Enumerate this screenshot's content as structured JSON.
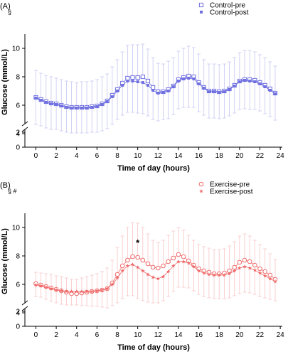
{
  "chart_data": [
    {
      "type": "line",
      "panel_label": "(A)",
      "annotation": "§",
      "xlabel": "Time of day (hours)",
      "ylabel": "Glucose (mmol/L)",
      "xlim": [
        -0.8,
        24.2
      ],
      "ylim_lower": [
        0,
        2
      ],
      "ylim_upper": [
        3,
        11
      ],
      "xticks": [
        "0",
        "2",
        "4",
        "6",
        "8",
        "10",
        "12",
        "14",
        "16",
        "18",
        "20",
        "22",
        "24"
      ],
      "yticks_lower": [
        "0",
        "2"
      ],
      "yticks_upper": [
        "4",
        "6",
        "8",
        "10"
      ],
      "axis_break": true,
      "legend_position": "top-right",
      "color": "#7070e0",
      "x": [
        0,
        0.5,
        1,
        1.5,
        2,
        2.5,
        3,
        3.5,
        4,
        4.5,
        5,
        5.5,
        6,
        6.5,
        7,
        7.5,
        8,
        8.5,
        9,
        9.5,
        10,
        10.5,
        11,
        11.5,
        12,
        12.5,
        13,
        13.5,
        14,
        14.5,
        15,
        15.5,
        16,
        16.5,
        17,
        17.5,
        18,
        18.5,
        19,
        19.5,
        20,
        20.5,
        21,
        21.5,
        22,
        22.5,
        23,
        23.5
      ],
      "series": [
        {
          "name": "Control-pre",
          "marker": "open-square",
          "values": [
            6.55,
            6.4,
            6.25,
            6.15,
            6.1,
            6.0,
            5.9,
            5.85,
            5.85,
            5.85,
            5.85,
            5.9,
            5.95,
            6.1,
            6.3,
            6.7,
            7.1,
            7.55,
            7.9,
            7.95,
            7.95,
            8.0,
            7.7,
            7.25,
            6.95,
            6.95,
            7.1,
            7.35,
            7.8,
            7.95,
            8.05,
            8.0,
            7.6,
            7.25,
            7.0,
            7.0,
            6.95,
            7.0,
            7.15,
            7.4,
            7.7,
            7.8,
            7.8,
            7.75,
            7.6,
            7.4,
            7.15,
            6.85
          ],
          "errors": [
            1.9,
            1.85,
            1.85,
            1.85,
            1.8,
            1.8,
            1.8,
            1.8,
            1.75,
            1.8,
            1.8,
            1.8,
            1.85,
            1.9,
            1.9,
            2.0,
            2.1,
            2.2,
            2.3,
            2.3,
            2.3,
            2.3,
            2.25,
            2.1,
            2.0,
            1.95,
            2.0,
            2.0,
            2.0,
            2.05,
            2.1,
            2.05,
            2.0,
            1.95,
            1.9,
            1.9,
            1.9,
            1.9,
            1.9,
            1.95,
            2.0,
            2.05,
            2.05,
            2.0,
            1.95,
            1.95,
            1.9,
            1.9
          ]
        },
        {
          "name": "Control-post",
          "marker": "filled-square",
          "values": [
            6.5,
            6.35,
            6.2,
            6.1,
            6.05,
            5.95,
            5.85,
            5.8,
            5.8,
            5.8,
            5.8,
            5.85,
            5.9,
            6.05,
            6.25,
            6.6,
            7.0,
            7.4,
            7.7,
            7.7,
            7.65,
            7.6,
            7.4,
            7.05,
            6.85,
            6.9,
            7.0,
            7.3,
            7.7,
            7.85,
            7.9,
            7.85,
            7.5,
            7.2,
            6.95,
            6.95,
            6.9,
            6.95,
            7.1,
            7.35,
            7.65,
            7.75,
            7.7,
            7.65,
            7.5,
            7.3,
            7.05,
            6.8
          ],
          "errors": [
            1.85,
            1.8,
            1.8,
            1.8,
            1.75,
            1.75,
            1.75,
            1.75,
            1.75,
            1.75,
            1.75,
            1.75,
            1.8,
            1.85,
            1.9,
            1.95,
            2.0,
            2.1,
            2.2,
            2.2,
            2.2,
            2.2,
            2.15,
            2.05,
            1.95,
            1.9,
            1.95,
            1.95,
            1.95,
            2.0,
            2.05,
            2.0,
            1.95,
            1.9,
            1.85,
            1.85,
            1.85,
            1.85,
            1.85,
            1.9,
            1.95,
            2.0,
            2.0,
            1.95,
            1.9,
            1.9,
            1.85,
            1.85
          ]
        }
      ]
    },
    {
      "type": "line",
      "panel_label": "(B)",
      "annotation": "§ #",
      "asterisk": "*",
      "asterisk_x": 10,
      "xlabel": "Time of day (hours)",
      "ylabel": "Glucose (mmol/L)",
      "xlim": [
        -0.8,
        24.2
      ],
      "ylim_lower": [
        0,
        2
      ],
      "ylim_upper": [
        3,
        11
      ],
      "xticks": [
        "0",
        "2",
        "4",
        "6",
        "8",
        "10",
        "12",
        "14",
        "16",
        "18",
        "20",
        "22",
        "24"
      ],
      "yticks_lower": [
        "0",
        "2"
      ],
      "yticks_upper": [
        "4",
        "6",
        "8",
        "10"
      ],
      "axis_break": true,
      "legend_position": "top-right",
      "color": "#ef6b6b",
      "x": [
        0,
        0.5,
        1,
        1.5,
        2,
        2.5,
        3,
        3.5,
        4,
        4.5,
        5,
        5.5,
        6,
        6.5,
        7,
        7.5,
        8,
        8.5,
        9,
        9.5,
        10,
        10.5,
        11,
        11.5,
        12,
        12.5,
        13,
        13.5,
        14,
        14.5,
        15,
        15.5,
        16,
        16.5,
        17,
        17.5,
        18,
        18.5,
        19,
        19.5,
        20,
        20.5,
        21,
        21.5,
        22,
        22.5,
        23,
        23.5
      ],
      "series": [
        {
          "name": "Exercise-pre",
          "marker": "open-circle",
          "values": [
            6.05,
            5.95,
            5.85,
            5.75,
            5.65,
            5.55,
            5.45,
            5.35,
            5.35,
            5.4,
            5.45,
            5.5,
            5.55,
            5.6,
            5.7,
            6.1,
            6.7,
            7.3,
            7.7,
            7.95,
            7.9,
            7.7,
            7.45,
            7.2,
            7.15,
            7.3,
            7.6,
            7.85,
            8.1,
            7.95,
            7.65,
            7.35,
            7.1,
            6.95,
            6.85,
            6.75,
            6.75,
            6.8,
            6.95,
            7.2,
            7.55,
            7.7,
            7.6,
            7.35,
            7.1,
            6.9,
            6.65,
            6.35
          ],
          "errors": [
            0.8,
            0.85,
            0.9,
            0.95,
            0.95,
            1.0,
            1.0,
            1.0,
            1.0,
            1.05,
            1.1,
            1.15,
            1.2,
            1.3,
            1.45,
            1.6,
            1.9,
            2.1,
            2.3,
            2.4,
            2.4,
            2.3,
            2.1,
            1.9,
            1.8,
            1.8,
            1.85,
            1.9,
            1.9,
            1.85,
            1.8,
            1.75,
            1.7,
            1.7,
            1.7,
            1.7,
            1.7,
            1.7,
            1.75,
            1.8,
            1.85,
            1.85,
            1.8,
            1.75,
            1.7,
            1.6,
            1.5,
            1.4
          ]
        },
        {
          "name": "Exercise-post",
          "marker": "filled-star",
          "values": [
            5.95,
            5.9,
            5.8,
            5.7,
            5.6,
            5.55,
            5.5,
            5.5,
            5.5,
            5.5,
            5.5,
            5.5,
            5.55,
            5.6,
            5.7,
            6.0,
            6.45,
            6.95,
            7.3,
            7.4,
            7.2,
            6.95,
            6.7,
            6.5,
            6.4,
            6.55,
            6.9,
            7.3,
            7.6,
            7.6,
            7.5,
            7.25,
            6.95,
            6.8,
            6.7,
            6.65,
            6.65,
            6.65,
            6.75,
            6.95,
            7.15,
            7.25,
            7.15,
            7.0,
            6.8,
            6.6,
            6.4,
            6.2
          ],
          "errors": [
            0.8,
            0.8,
            0.85,
            0.9,
            0.9,
            0.95,
            0.95,
            0.95,
            0.95,
            1.0,
            1.0,
            1.05,
            1.1,
            1.2,
            1.35,
            1.5,
            1.75,
            1.95,
            2.1,
            2.2,
            2.2,
            2.1,
            1.95,
            1.8,
            1.7,
            1.7,
            1.75,
            1.8,
            1.8,
            1.8,
            1.75,
            1.7,
            1.65,
            1.65,
            1.65,
            1.65,
            1.65,
            1.65,
            1.7,
            1.75,
            1.8,
            1.8,
            1.75,
            1.7,
            1.65,
            1.55,
            1.45,
            1.35
          ]
        }
      ]
    }
  ]
}
